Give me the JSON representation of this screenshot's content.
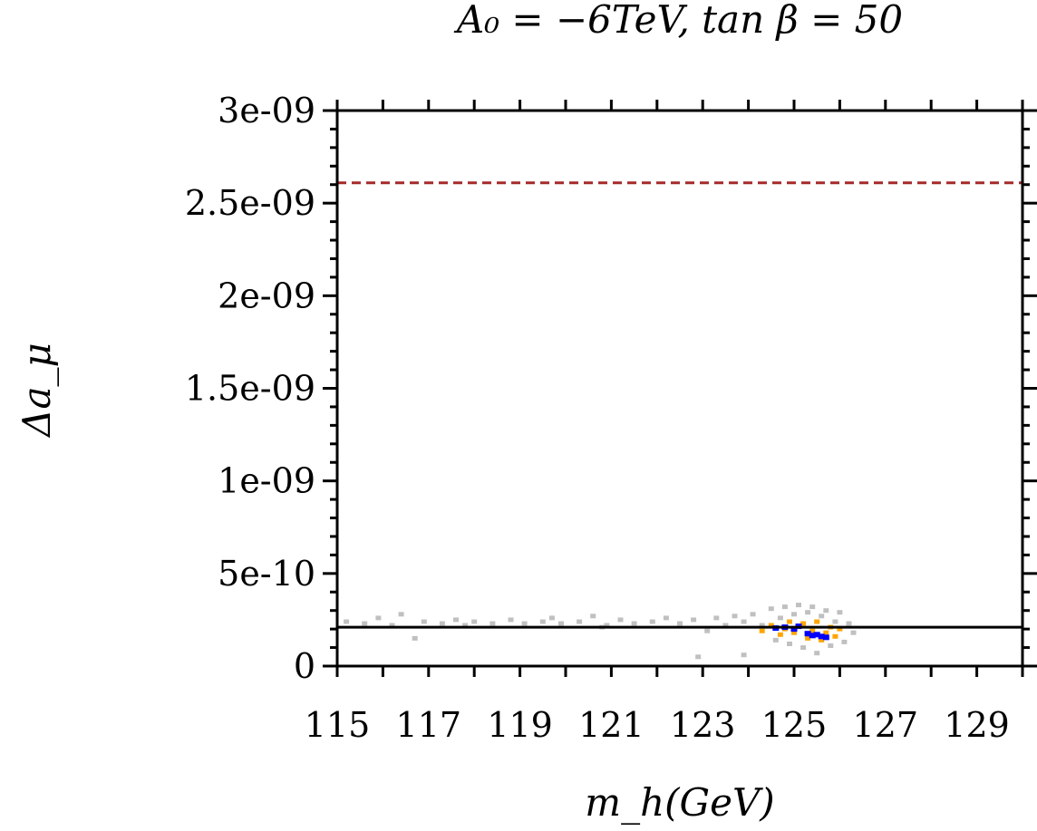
{
  "chart_data": {
    "type": "scatter",
    "title": "A₀ = −6TeV, tan β = 50",
    "xlabel": "m_h(GeV)",
    "ylabel": "Δa_μ",
    "xlim": [
      115,
      130
    ],
    "ylim": [
      0,
      3e-09
    ],
    "x_ticks": [
      {
        "value": 115,
        "label": "115"
      },
      {
        "value": 117,
        "label": "117"
      },
      {
        "value": 119,
        "label": "119"
      },
      {
        "value": 121,
        "label": "121"
      },
      {
        "value": 123,
        "label": "123"
      },
      {
        "value": 125,
        "label": "125"
      },
      {
        "value": 127,
        "label": "127"
      },
      {
        "value": 129,
        "label": "129"
      }
    ],
    "y_ticks": [
      {
        "value": 0,
        "label": "0"
      },
      {
        "value": 5e-10,
        "label": "5e-10"
      },
      {
        "value": 1e-09,
        "label": "1e-09"
      },
      {
        "value": 1.5e-09,
        "label": "1.5e-09"
      },
      {
        "value": 2e-09,
        "label": "2e-09"
      },
      {
        "value": 2.5e-09,
        "label": "2.5e-09"
      },
      {
        "value": 3e-09,
        "label": "3e-09"
      }
    ],
    "reference_lines": [
      {
        "y": 2.1e-10,
        "color": "#000000",
        "style": "solid"
      },
      {
        "y": 2.61e-09,
        "color": "#a52a2a",
        "style": "dashed"
      }
    ],
    "series": [
      {
        "color": "#c0c0c0",
        "points": [
          [
            115.2,
            2.4e-10
          ],
          [
            115.6,
            2.3e-10
          ],
          [
            115.9,
            2.6e-10
          ],
          [
            116.2,
            2.2e-10
          ],
          [
            116.4,
            2.8e-10
          ],
          [
            116.7,
            1.5e-10
          ],
          [
            116.9,
            2.4e-10
          ],
          [
            117.3,
            2.3e-10
          ],
          [
            117.6,
            2.5e-10
          ],
          [
            118.0,
            2.4e-10
          ],
          [
            118.4,
            2.3e-10
          ],
          [
            118.8,
            2.5e-10
          ],
          [
            119.1,
            2.3e-10
          ],
          [
            119.5,
            2.4e-10
          ],
          [
            119.9,
            2.3e-10
          ],
          [
            120.3,
            2.4e-10
          ],
          [
            120.6,
            2.7e-10
          ],
          [
            120.9,
            2.2e-10
          ],
          [
            121.2,
            2.5e-10
          ],
          [
            121.5,
            2.3e-10
          ],
          [
            121.9,
            2.4e-10
          ],
          [
            122.2,
            2.6e-10
          ],
          [
            122.5,
            2.3e-10
          ],
          [
            122.8,
            2.5e-10
          ],
          [
            123.1,
            1.9e-10
          ],
          [
            123.3,
            2.6e-10
          ],
          [
            123.5,
            2.2e-10
          ],
          [
            123.7,
            2.7e-10
          ],
          [
            123.9,
            2.4e-10
          ],
          [
            124.1,
            2.8e-10
          ],
          [
            124.3,
            2.2e-10
          ],
          [
            124.5,
            3.1e-10
          ],
          [
            124.6,
            1.4e-10
          ],
          [
            124.7,
            2.6e-10
          ],
          [
            124.8,
            3.2e-10
          ],
          [
            124.9,
            1.2e-10
          ],
          [
            125.0,
            2.8e-10
          ],
          [
            125.1,
            3.3e-10
          ],
          [
            125.2,
            1e-10
          ],
          [
            125.3,
            2.9e-10
          ],
          [
            125.4,
            3.2e-10
          ],
          [
            125.5,
            7e-11
          ],
          [
            125.6,
            2.7e-10
          ],
          [
            125.7,
            3e-10
          ],
          [
            125.8,
            1.1e-10
          ],
          [
            125.9,
            2.4e-10
          ],
          [
            126.0,
            2.9e-10
          ],
          [
            126.1,
            1.3e-10
          ],
          [
            126.2,
            2.3e-10
          ],
          [
            126.3,
            1.8e-10
          ],
          [
            123.9,
            6e-11
          ],
          [
            122.9,
            5e-11
          ],
          [
            120.8,
            2.1e-10
          ],
          [
            117.8,
            2.2e-10
          ],
          [
            119.7,
            2.6e-10
          ]
        ]
      },
      {
        "color": "#ffa500",
        "points": [
          [
            124.3,
            1.9e-10
          ],
          [
            124.5,
            2.2e-10
          ],
          [
            124.7,
            1.7e-10
          ],
          [
            124.9,
            2.4e-10
          ],
          [
            125.0,
            1.8e-10
          ],
          [
            125.2,
            2.3e-10
          ],
          [
            125.3,
            1.5e-10
          ],
          [
            125.5,
            2.4e-10
          ],
          [
            125.6,
            1.4e-10
          ],
          [
            125.8,
            2.1e-10
          ],
          [
            125.9,
            1.6e-10
          ],
          [
            126.0,
            2e-10
          ],
          [
            124.8,
            2e-10
          ],
          [
            125.4,
            1.9e-10
          ],
          [
            125.7,
            1.8e-10
          ]
        ]
      },
      {
        "color": "#0000ff",
        "points": [
          [
            124.6,
            2.05e-10
          ],
          [
            124.8,
            2.1e-10
          ],
          [
            125.0,
            2e-10
          ],
          [
            125.1,
            2.15e-10
          ],
          [
            125.3,
            1.75e-10
          ],
          [
            125.4,
            1.65e-10
          ],
          [
            125.5,
            1.7e-10
          ],
          [
            125.6,
            1.6e-10
          ],
          [
            125.7,
            1.55e-10
          ]
        ]
      }
    ]
  }
}
